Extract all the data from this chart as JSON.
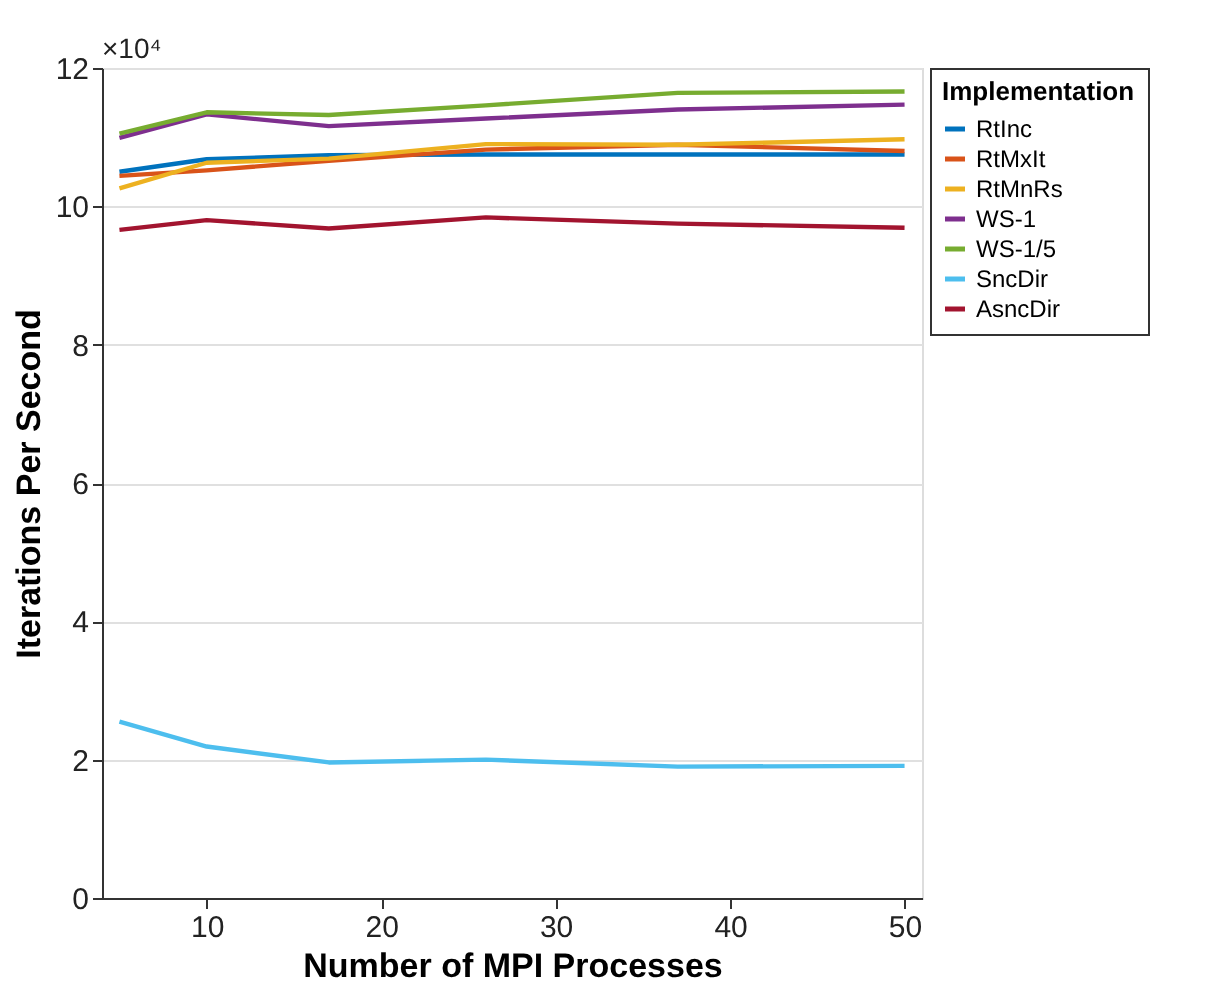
{
  "chart_data": {
    "type": "line",
    "xlabel": "Number of MPI Processes",
    "ylabel": "Iterations Per Second",
    "legend_title": "Implementation",
    "legend": "top right",
    "grid": "y",
    "line_style": "solid",
    "marker": "none",
    "x": [
      5,
      10,
      17,
      26,
      37,
      50
    ],
    "xlim": [
      4,
      51
    ],
    "xticks": [
      10,
      20,
      30,
      40,
      50
    ],
    "ylim": [
      0,
      12
    ],
    "yticks": [
      0,
      2,
      4,
      6,
      8,
      10,
      12
    ],
    "annotations": [
      "×10⁴"
    ],
    "series": [
      {
        "name": "RtInc",
        "color": "#0072bd",
        "values": [
          10.5,
          10.68,
          10.74,
          10.75,
          10.75,
          10.75
        ]
      },
      {
        "name": "RtMxIt",
        "color": "#d95319",
        "values": [
          10.44,
          10.52,
          10.66,
          10.82,
          10.89,
          10.8
        ]
      },
      {
        "name": "RtMnRs",
        "color": "#edb120",
        "values": [
          10.26,
          10.63,
          10.69,
          10.9,
          10.89,
          10.97
        ]
      },
      {
        "name": "WS-1",
        "color": "#7e2f8e",
        "values": [
          10.99,
          11.33,
          11.16,
          11.27,
          11.4,
          11.47
        ]
      },
      {
        "name": "WS-1/5",
        "color": "#77ac30",
        "values": [
          11.05,
          11.36,
          11.32,
          11.46,
          11.64,
          11.66
        ]
      },
      {
        "name": "SncDir",
        "color": "#4dbeee",
        "values": [
          2.55,
          2.19,
          1.96,
          2.0,
          1.9,
          1.91
        ]
      },
      {
        "name": "AsncDir",
        "color": "#a2142f",
        "values": [
          9.66,
          9.8,
          9.68,
          9.84,
          9.75,
          9.69
        ]
      }
    ]
  }
}
